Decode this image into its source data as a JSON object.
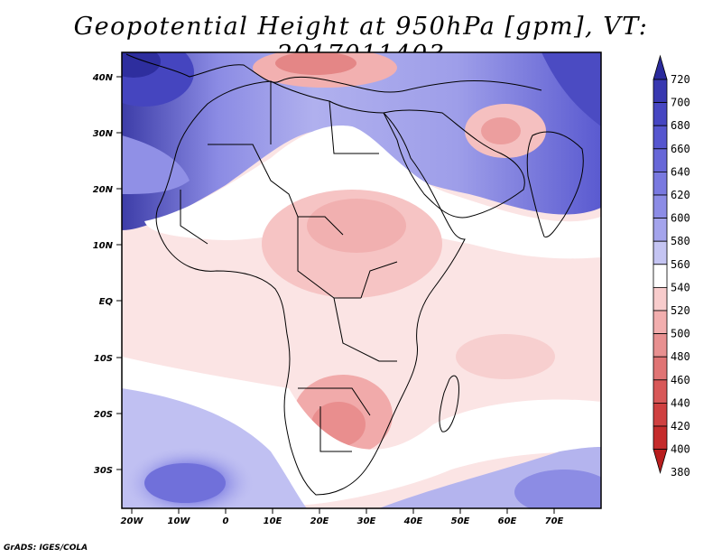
{
  "title": "Geopotential Height at 950hPa [gpm], VT: 2017011403",
  "footer": "GrADS: IGES/COLA",
  "lat_labels": [
    "40N",
    "30N",
    "20N",
    "10N",
    "EQ",
    "10S",
    "20S",
    "30S"
  ],
  "lon_labels": [
    "20W",
    "10W",
    "0",
    "10E",
    "20E",
    "30E",
    "40E",
    "50E",
    "60E",
    "70E"
  ],
  "colorbar": {
    "levels": [
      "720",
      "700",
      "680",
      "660",
      "640",
      "620",
      "600",
      "580",
      "560",
      "540",
      "520",
      "500",
      "480",
      "460",
      "440",
      "420",
      "400",
      "380"
    ],
    "colors": [
      "#2b2b9c",
      "#3838b0",
      "#4646c2",
      "#5656cf",
      "#6767d8",
      "#7979e0",
      "#8c8ce6",
      "#a4a4ec",
      "#c4c4f2",
      "#ffffff",
      "#f8cccc",
      "#f2aeae",
      "#e89090",
      "#e07474",
      "#d85858",
      "#cf4040",
      "#c52b2b",
      "#b81d1d"
    ]
  },
  "map": {
    "lon_range": [
      -22,
      80
    ],
    "lat_range": [
      -37,
      45
    ]
  }
}
